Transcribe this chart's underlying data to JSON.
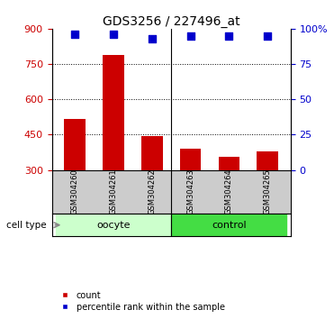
{
  "title": "GDS3256 / 227496_at",
  "samples": [
    "GSM304260",
    "GSM304261",
    "GSM304262",
    "GSM304263",
    "GSM304264",
    "GSM304265"
  ],
  "counts": [
    515,
    790,
    445,
    390,
    355,
    378
  ],
  "percentile_ranks": [
    96,
    96,
    93,
    95,
    95,
    95
  ],
  "ylim_left": [
    300,
    900
  ],
  "ylim_right": [
    0,
    100
  ],
  "yticks_left": [
    300,
    450,
    600,
    750,
    900
  ],
  "yticks_right": [
    0,
    25,
    50,
    75,
    100
  ],
  "ytick_labels_right": [
    "0",
    "25",
    "50",
    "75",
    "100%"
  ],
  "bar_color": "#cc0000",
  "scatter_color": "#0000cc",
  "cell_type_labels": [
    "oocyte",
    "control"
  ],
  "cell_type_ranges": [
    [
      0,
      3
    ],
    [
      3,
      6
    ]
  ],
  "cell_type_colors": [
    "#ccffcc",
    "#44dd44"
  ],
  "group_label": "cell type",
  "legend_items": [
    "count",
    "percentile rank within the sample"
  ],
  "legend_colors": [
    "#cc0000",
    "#0000cc"
  ],
  "axis_left_color": "#cc0000",
  "axis_right_color": "#0000cc",
  "grid_yticks": [
    450,
    600,
    750
  ],
  "sample_area_color": "#cccccc",
  "fig_width": 3.71,
  "fig_height": 3.54
}
